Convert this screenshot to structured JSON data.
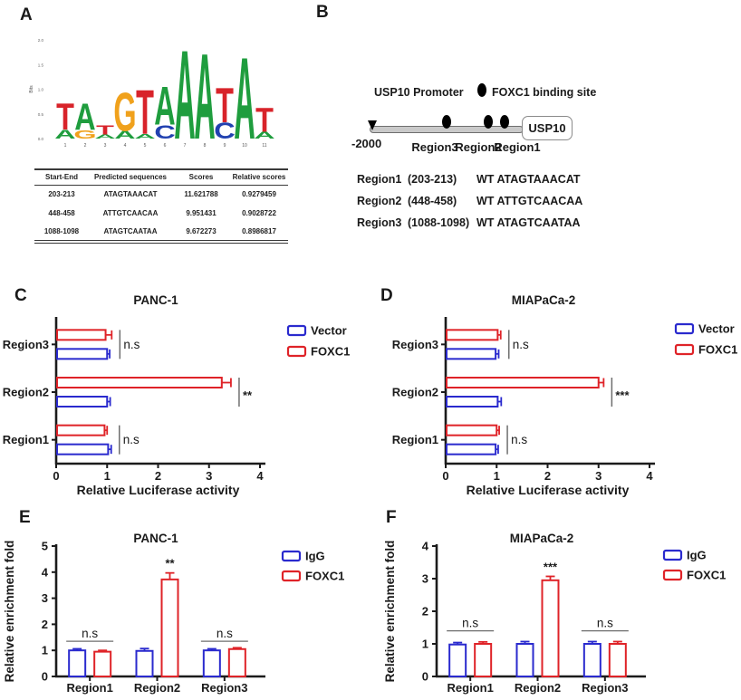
{
  "panel_letters": {
    "a": "A",
    "b": "B",
    "c": "C",
    "d": "D",
    "e": "E",
    "f": "F"
  },
  "panel_a": {
    "table": {
      "headers": [
        "Start-End",
        "Predicted sequences",
        "Scores",
        "Relative scores"
      ],
      "rows": [
        [
          "203-213",
          "ATAGTAAACAT",
          "11.621788",
          "0.9279459"
        ],
        [
          "448-458",
          "ATTGTCAACAA",
          "9.951431",
          "0.9028722"
        ],
        [
          "1088-1098",
          "ATAGTCAATAA",
          "9.672273",
          "0.8986817"
        ]
      ]
    }
  },
  "panel_b": {
    "promoter_label": "USP10 Promoter",
    "binding_site_label": "FOXC1 binding site",
    "gene_label": "USP10",
    "position_label": "-2000",
    "track_labels": [
      "Region3",
      "Region2",
      "Region1"
    ],
    "regions": [
      {
        "name": "Region1",
        "range": "(203-213)",
        "sequence": "WT ATAGTAAACAT"
      },
      {
        "name": "Region2",
        "range": "(448-458)",
        "sequence": "WT ATTGTCAACAA"
      },
      {
        "name": "Region3",
        "range": "(1088-1098)",
        "sequence": "WT ATAGTCAATAA"
      }
    ]
  },
  "colors": {
    "blue": "#2a2ace",
    "red": "#df2328",
    "axis": "#1b1b1b",
    "sig_line": "#6e6e6e",
    "logo": {
      "A": "#1f9d3e",
      "C": "#2141b0",
      "G": "#f0a11c",
      "T": "#d8232a"
    }
  },
  "chart_data": [
    {
      "panel": "a_logo",
      "type": "logo",
      "ylabel": "Bits",
      "ylim": [
        0,
        2
      ],
      "yticks": [
        0,
        0.5,
        1,
        1.5,
        2
      ],
      "positions": [
        {
          "index": 1,
          "stack": [
            [
              "A",
              0.18
            ],
            [
              "T",
              0.55
            ]
          ]
        },
        {
          "index": 2,
          "stack": [
            [
              "G",
              0.17
            ],
            [
              "A",
              0.55
            ]
          ]
        },
        {
          "index": 3,
          "stack": [
            [
              "A",
              0.08
            ],
            [
              "T",
              0.2
            ]
          ]
        },
        {
          "index": 4,
          "stack": [
            [
              "A",
              0.16
            ],
            [
              "G",
              0.8
            ]
          ]
        },
        {
          "index": 5,
          "stack": [
            [
              "A",
              0.1
            ],
            [
              "T",
              0.92
            ]
          ]
        },
        {
          "index": 6,
          "stack": [
            [
              "C",
              0.28
            ],
            [
              "A",
              0.8
            ]
          ]
        },
        {
          "index": 7,
          "stack": [
            [
              "A",
              1.85
            ]
          ]
        },
        {
          "index": 8,
          "stack": [
            [
              "A",
              1.78
            ]
          ]
        },
        {
          "index": 9,
          "stack": [
            [
              "C",
              0.33
            ],
            [
              "T",
              0.72
            ]
          ]
        },
        {
          "index": 10,
          "stack": [
            [
              "A",
              1.7
            ]
          ]
        },
        {
          "index": 11,
          "stack": [
            [
              "A",
              0.14
            ],
            [
              "T",
              0.5
            ]
          ]
        }
      ]
    },
    {
      "panel": "c",
      "type": "hbar",
      "title": "PANC-1",
      "xlabel": "Relative Luciferase activity",
      "xlim": [
        0,
        4
      ],
      "xticks": [
        0,
        1,
        2,
        3,
        4
      ],
      "categories": [
        "Region1",
        "Region2",
        "Region3"
      ],
      "series": [
        {
          "name": "Vector",
          "color": "blue",
          "values": [
            1.02,
            1.0,
            1.0
          ],
          "errors": [
            0.06,
            0.06,
            0.05
          ]
        },
        {
          "name": "FOXC1",
          "color": "red",
          "values": [
            0.95,
            3.25,
            0.97
          ],
          "errors": [
            0.05,
            0.18,
            0.12
          ]
        }
      ],
      "significance": [
        "n.s",
        "**",
        "n.s"
      ],
      "legend_position": "right"
    },
    {
      "panel": "d",
      "type": "hbar",
      "title": "MIAPaCa-2",
      "xlabel": "Relative Luciferase activity",
      "xlim": [
        0,
        4
      ],
      "xticks": [
        0,
        1,
        2,
        3,
        4
      ],
      "categories": [
        "Region1",
        "Region2",
        "Region3"
      ],
      "series": [
        {
          "name": "Vector",
          "color": "blue",
          "values": [
            0.98,
            1.02,
            0.98
          ],
          "errors": [
            0.05,
            0.07,
            0.06
          ]
        },
        {
          "name": "FOXC1",
          "color": "red",
          "values": [
            1.0,
            3.0,
            1.02
          ],
          "errors": [
            0.05,
            0.1,
            0.06
          ]
        }
      ],
      "significance": [
        "n.s",
        "***",
        "n.s"
      ],
      "legend_position": "right"
    },
    {
      "panel": "e",
      "type": "vbar",
      "title": "PANC-1",
      "ylabel": "Relative enrichment fold",
      "ylim": [
        0,
        5
      ],
      "yticks": [
        0,
        1,
        2,
        3,
        4,
        5
      ],
      "categories": [
        "Region1",
        "Region2",
        "Region3"
      ],
      "series": [
        {
          "name": "IgG",
          "color": "blue",
          "values": [
            1.0,
            0.98,
            1.0
          ],
          "errors": [
            0.06,
            0.09,
            0.06
          ]
        },
        {
          "name": "FOXC1",
          "color": "red",
          "values": [
            0.95,
            3.72,
            1.05
          ],
          "errors": [
            0.05,
            0.25,
            0.05
          ]
        }
      ],
      "significance": [
        "n.s",
        "**",
        "n.s"
      ],
      "ns_line_value": 1.35,
      "legend_position": "right"
    },
    {
      "panel": "f",
      "type": "vbar",
      "title": "MIAPaCa-2",
      "ylabel": "Relative enrichment fold",
      "ylim": [
        0,
        4
      ],
      "yticks": [
        0,
        1,
        2,
        3,
        4
      ],
      "categories": [
        "Region1",
        "Region2",
        "Region3"
      ],
      "series": [
        {
          "name": "IgG",
          "color": "blue",
          "values": [
            0.98,
            1.0,
            1.0
          ],
          "errors": [
            0.06,
            0.07,
            0.07
          ]
        },
        {
          "name": "FOXC1",
          "color": "red",
          "values": [
            1.0,
            2.95,
            1.0
          ],
          "errors": [
            0.06,
            0.12,
            0.07
          ]
        }
      ],
      "significance": [
        "n.s",
        "***",
        "n.s"
      ],
      "ns_line_value": 1.4,
      "legend_position": "right"
    }
  ]
}
